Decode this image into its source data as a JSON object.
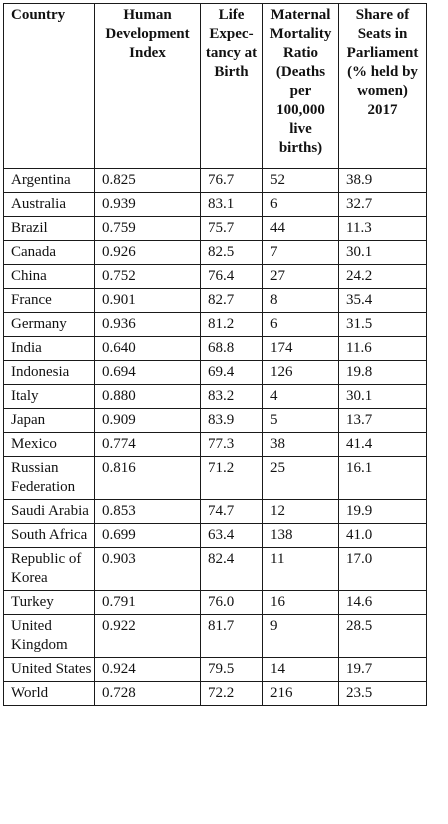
{
  "table": {
    "headers": [
      "Country",
      "Human Development Index",
      "Life Expec-tancy at Birth",
      "Maternal Mortality Ratio (Deaths per 100,000 live births)",
      "Share of Seats in Parliament (% held by women) 2017"
    ],
    "header_lines": [
      [
        "Country"
      ],
      [
        "Human",
        "Development",
        "Index"
      ],
      [
        "Life",
        "Expec-",
        "tancy at",
        "Birth"
      ],
      [
        "Maternal",
        "Mortality",
        "Ratio",
        "(Deaths",
        "per",
        "100,000",
        "live",
        "births)"
      ],
      [
        "Share of",
        "Seats in",
        "Parliament",
        "(% held by",
        "women)",
        "2017"
      ]
    ],
    "rows": [
      [
        "Argentina",
        "0.825",
        "76.7",
        "52",
        "38.9"
      ],
      [
        "Australia",
        "0.939",
        "83.1",
        "6",
        "32.7"
      ],
      [
        "Brazil",
        "0.759",
        "75.7",
        "44",
        "11.3"
      ],
      [
        "Canada",
        "0.926",
        "82.5",
        "7",
        "30.1"
      ],
      [
        "China",
        "0.752",
        "76.4",
        "27",
        "24.2"
      ],
      [
        "France",
        "0.901",
        "82.7",
        "8",
        "35.4"
      ],
      [
        "Germany",
        "0.936",
        "81.2",
        "6",
        "31.5"
      ],
      [
        "India",
        "0.640",
        "68.8",
        "174",
        "11.6"
      ],
      [
        "Indonesia",
        "0.694",
        "69.4",
        "126",
        "19.8"
      ],
      [
        "Italy",
        "0.880",
        "83.2",
        "4",
        "30.1"
      ],
      [
        "Japan",
        "0.909",
        "83.9",
        "5",
        "13.7"
      ],
      [
        "Mexico",
        "0.774",
        "77.3",
        "38",
        "41.4"
      ],
      [
        "Russian Federation",
        "0.816",
        "71.2",
        "25",
        "16.1"
      ],
      [
        "Saudi Arabia",
        "0.853",
        "74.7",
        "12",
        "19.9"
      ],
      [
        "South Africa",
        "0.699",
        "63.4",
        "138",
        "41.0"
      ],
      [
        "Republic of Korea",
        "0.903",
        "82.4",
        "11",
        "17.0"
      ],
      [
        "Turkey",
        "0.791",
        "76.0",
        "16",
        "14.6"
      ],
      [
        "United Kingdom",
        "0.922",
        "81.7",
        "9",
        "28.5"
      ],
      [
        "United States",
        "0.924",
        "79.5",
        "14",
        "19.7"
      ],
      [
        "World",
        "0.728",
        "72.2",
        "216",
        "23.5"
      ]
    ]
  }
}
